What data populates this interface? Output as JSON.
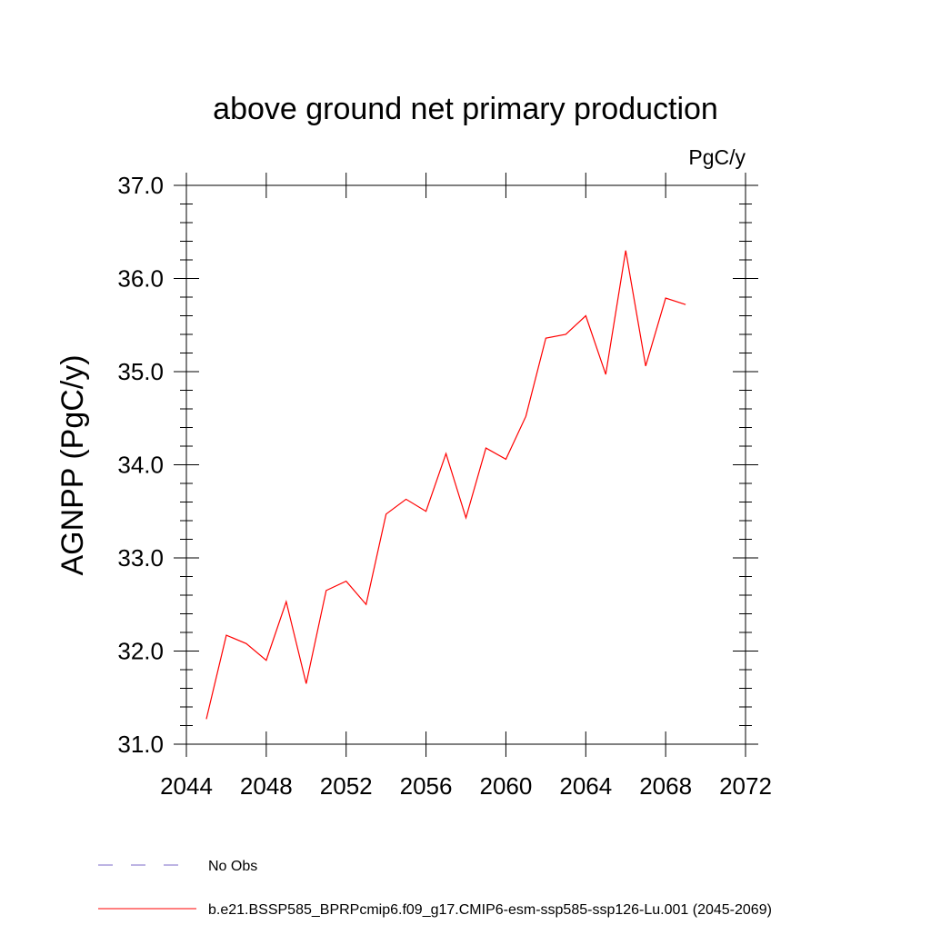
{
  "chart_data": {
    "type": "line",
    "title": "above ground net primary production",
    "units": "PgC/y",
    "ylabel": "AGNPP  (PgC/y)",
    "xlabel": "",
    "xlim": [
      2044,
      2072
    ],
    "ylim": [
      31.0,
      37.0
    ],
    "x_ticks": [
      2044,
      2048,
      2052,
      2056,
      2060,
      2064,
      2068,
      2072
    ],
    "x_tick_labels": [
      "2044",
      "2048",
      "2052",
      "2056",
      "2060",
      "2064",
      "2068",
      "2072"
    ],
    "y_ticks": [
      31.0,
      32.0,
      33.0,
      34.0,
      35.0,
      36.0,
      37.0
    ],
    "y_tick_labels": [
      "31.0",
      "32.0",
      "33.0",
      "34.0",
      "35.0",
      "36.0",
      "37.0"
    ],
    "grid": false,
    "legend_position": "bottom",
    "series": [
      {
        "name": "b.e21.BSSP585_BPRPcmip6.f09_g17.CMIP6-esm-ssp585-ssp126-Lu.001 (2045-2069)",
        "color": "#ff0000",
        "dash": "solid",
        "x": [
          2045,
          2046,
          2047,
          2048,
          2049,
          2050,
          2051,
          2052,
          2053,
          2054,
          2055,
          2056,
          2057,
          2058,
          2059,
          2060,
          2061,
          2062,
          2063,
          2064,
          2065,
          2066,
          2067,
          2068,
          2069
        ],
        "y": [
          31.27,
          32.17,
          32.08,
          31.9,
          32.53,
          31.65,
          32.65,
          32.75,
          32.5,
          33.47,
          33.63,
          33.5,
          34.12,
          33.43,
          34.18,
          34.06,
          34.52,
          35.36,
          35.4,
          35.6,
          34.97,
          36.3,
          35.06,
          35.79,
          35.72
        ]
      }
    ],
    "legend": [
      {
        "label": "No Obs",
        "color": "#7b68c8",
        "dash": "dashed"
      },
      {
        "label": "b.e21.BSSP585_BPRPcmip6.f09_g17.CMIP6-esm-ssp585-ssp126-Lu.001 (2045-2069)",
        "color": "#ff0000",
        "dash": "solid"
      }
    ]
  }
}
